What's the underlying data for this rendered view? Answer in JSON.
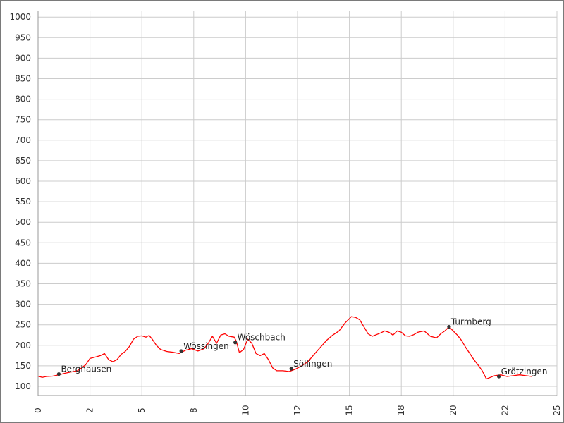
{
  "chart_data": {
    "type": "line",
    "title": "",
    "xlabel": "",
    "ylabel": "",
    "xlim": [
      0,
      25
    ],
    "ylim": [
      100,
      1000
    ],
    "grid": true,
    "x_ticks": [
      {
        "value": 0,
        "label": "0"
      },
      {
        "value": 2.5,
        "label": "2"
      },
      {
        "value": 5,
        "label": "5"
      },
      {
        "value": 7.5,
        "label": "8"
      },
      {
        "value": 10,
        "label": "10"
      },
      {
        "value": 12.5,
        "label": "12"
      },
      {
        "value": 15,
        "label": "15"
      },
      {
        "value": 17.5,
        "label": "18"
      },
      {
        "value": 20,
        "label": "20"
      },
      {
        "value": 22.5,
        "label": "22"
      },
      {
        "value": 25,
        "label": "25"
      }
    ],
    "y_ticks": [
      {
        "value": 100,
        "label": "100"
      },
      {
        "value": 150,
        "label": "150"
      },
      {
        "value": 200,
        "label": "200"
      },
      {
        "value": 250,
        "label": "250"
      },
      {
        "value": 300,
        "label": "300"
      },
      {
        "value": 350,
        "label": "350"
      },
      {
        "value": 400,
        "label": "400"
      },
      {
        "value": 450,
        "label": "450"
      },
      {
        "value": 500,
        "label": "500"
      },
      {
        "value": 550,
        "label": "550"
      },
      {
        "value": 600,
        "label": "600"
      },
      {
        "value": 650,
        "label": "650"
      },
      {
        "value": 700,
        "label": "700"
      },
      {
        "value": 750,
        "label": "750"
      },
      {
        "value": 800,
        "label": "800"
      },
      {
        "value": 850,
        "label": "850"
      },
      {
        "value": 900,
        "label": "900"
      },
      {
        "value": 950,
        "label": "950"
      },
      {
        "value": 1000,
        "label": "1000"
      }
    ],
    "series": [
      {
        "color": "#ff0000",
        "x": [
          0,
          0.2,
          0.4,
          0.7,
          1.0,
          1.3,
          1.6,
          1.9,
          2.1,
          2.3,
          2.5,
          2.8,
          3.0,
          3.2,
          3.4,
          3.6,
          3.8,
          4.0,
          4.2,
          4.4,
          4.6,
          4.8,
          5.0,
          5.2,
          5.35,
          5.5,
          5.7,
          5.9,
          6.2,
          6.5,
          6.8,
          7.1,
          7.4,
          7.7,
          8.0,
          8.2,
          8.4,
          8.6,
          8.8,
          9.0,
          9.2,
          9.45,
          9.55,
          9.7,
          9.9,
          10.1,
          10.3,
          10.5,
          10.7,
          10.9,
          11.1,
          11.3,
          11.5,
          11.8,
          12.1,
          12.4,
          12.7,
          13.0,
          13.3,
          13.6,
          13.9,
          14.2,
          14.5,
          14.8,
          15.1,
          15.3,
          15.5,
          15.7,
          15.9,
          16.1,
          16.3,
          16.5,
          16.7,
          16.9,
          17.1,
          17.3,
          17.5,
          17.7,
          17.9,
          18.1,
          18.3,
          18.6,
          18.9,
          19.2,
          19.4,
          19.6,
          19.8,
          19.9,
          20.0,
          20.2,
          20.4,
          20.6,
          20.8,
          21.0,
          21.2,
          21.4,
          21.6,
          21.8,
          22.0,
          22.3,
          22.6,
          22.9,
          23.2,
          23.5,
          23.8
        ],
        "values": [
          125,
          122,
          124,
          125,
          128,
          132,
          135,
          138,
          145,
          153,
          168,
          172,
          175,
          180,
          165,
          160,
          165,
          178,
          185,
          197,
          215,
          222,
          223,
          220,
          224,
          215,
          200,
          190,
          185,
          183,
          180,
          188,
          192,
          186,
          192,
          205,
          222,
          205,
          225,
          228,
          222,
          220,
          210,
          182,
          190,
          215,
          205,
          180,
          175,
          180,
          165,
          145,
          138,
          138,
          136,
          142,
          150,
          160,
          178,
          195,
          212,
          225,
          235,
          255,
          270,
          268,
          262,
          245,
          228,
          222,
          226,
          230,
          235,
          232,
          225,
          235,
          232,
          223,
          222,
          226,
          232,
          235,
          222,
          218,
          228,
          235,
          245,
          240,
          235,
          225,
          212,
          195,
          180,
          165,
          152,
          138,
          118,
          122,
          126,
          128,
          124,
          126,
          128,
          126,
          124
        ]
      }
    ],
    "annotations": [
      {
        "label": "Berghausen",
        "x": 1.0,
        "y": 130
      },
      {
        "label": "Wössingen",
        "x": 6.9,
        "y": 186
      },
      {
        "label": "Wöschbach",
        "x": 9.5,
        "y": 207
      },
      {
        "label": "Söllingen",
        "x": 12.2,
        "y": 143
      },
      {
        "label": "Turmberg",
        "x": 19.8,
        "y": 245
      },
      {
        "label": "Grötzingen",
        "x": 22.2,
        "y": 124
      }
    ]
  }
}
